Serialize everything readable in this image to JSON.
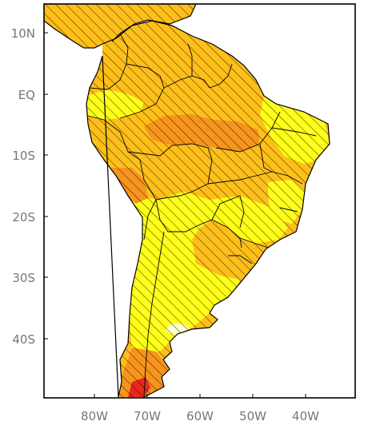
{
  "map": {
    "y_axis_labels": [
      "10N",
      "EQ",
      "10S",
      "20S",
      "30S",
      "40S"
    ],
    "x_axis_labels": [
      "80W",
      "70W",
      "60W",
      "50W",
      "40W"
    ],
    "colors": {
      "yellow": "#ffff1a",
      "light_orange": "#ffbf1a",
      "orange": "#f7941d",
      "dark_orange": "#ff7a1a",
      "red": "#e8281e",
      "pale": "#ffffcc",
      "ocean": "#ffffff",
      "outline": "#000000",
      "axis_text": "#777777"
    },
    "hatching": "diagonal black lines over most of the continent"
  }
}
